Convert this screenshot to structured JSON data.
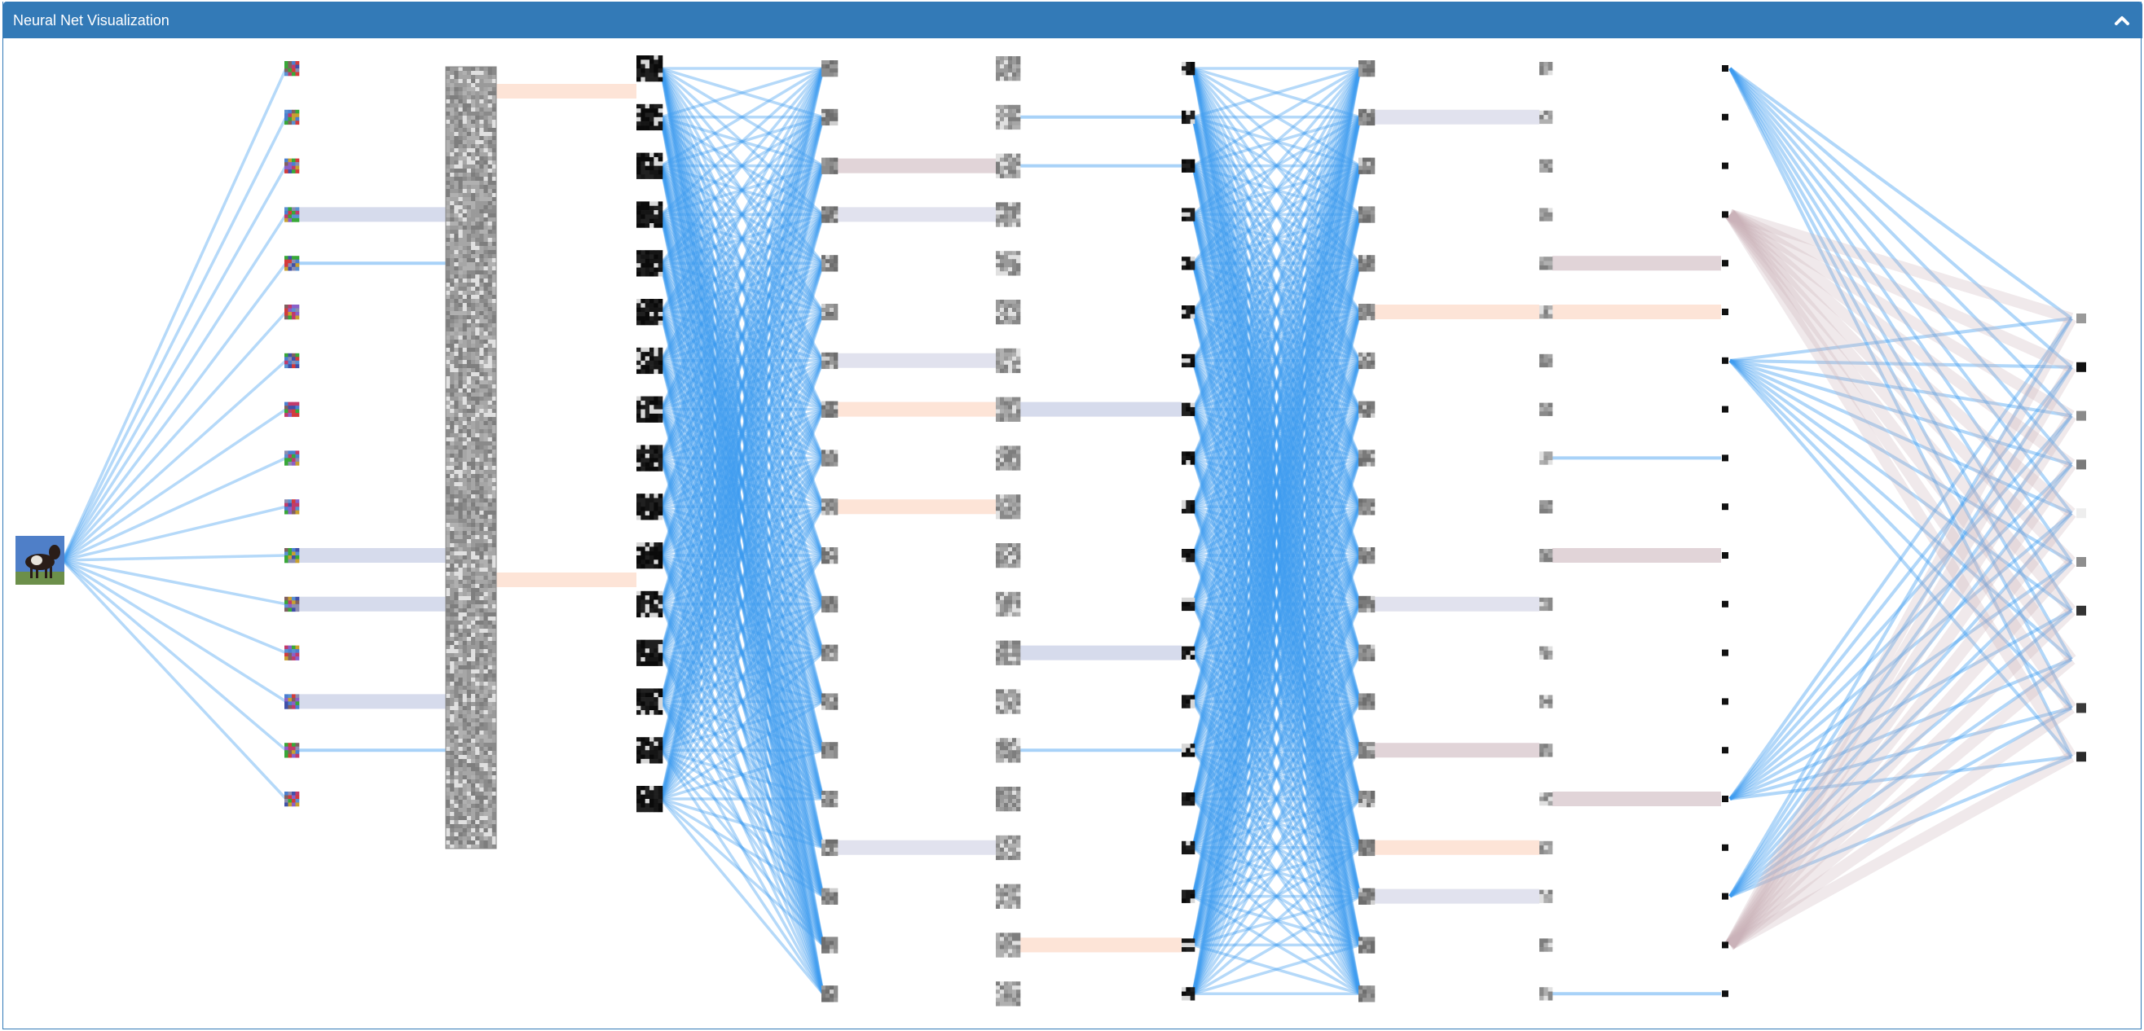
{
  "panel": {
    "title": "Neural Net Visualization",
    "toggle_icon": "chevron-up-icon"
  },
  "colors": {
    "header": "#337ab7",
    "header_text": "#ffffff",
    "edge_blue": "#3d9bf0",
    "edge_slate": "#b4bedd",
    "edge_peach": "#fbcdb6",
    "edge_mauve": "#c9b1b8",
    "edge_lavender": "#c8cae0"
  },
  "network": {
    "layers": [
      {
        "name": "input",
        "count": 1,
        "kind": "color"
      },
      {
        "name": "conv1",
        "count": 16,
        "kind": "color"
      },
      {
        "name": "activation1",
        "count": 16,
        "kind": "gray"
      },
      {
        "name": "pool1",
        "count": 16,
        "kind": "dark"
      },
      {
        "name": "conv2",
        "count": 20,
        "kind": "mid"
      },
      {
        "name": "activation2",
        "count": 20,
        "kind": "gray"
      },
      {
        "name": "pool2",
        "count": 20,
        "kind": "dark"
      },
      {
        "name": "conv3",
        "count": 20,
        "kind": "mid"
      },
      {
        "name": "activation3",
        "count": 20,
        "kind": "gray"
      },
      {
        "name": "pool3",
        "count": 20,
        "kind": "dark"
      },
      {
        "name": "softmax",
        "count": 10,
        "kind": "mid"
      }
    ],
    "one_to_one": [
      {
        "from": 1,
        "to": 2,
        "highlights": [
          [
            3,
            "slate"
          ],
          [
            4,
            "blue"
          ],
          [
            10,
            "slate"
          ],
          [
            11,
            "slate"
          ],
          [
            13,
            "slate"
          ],
          [
            14,
            "blue"
          ]
        ]
      },
      {
        "from": 2,
        "to": 3,
        "highlights": [
          [
            0,
            "peach"
          ],
          [
            10,
            "peach"
          ]
        ]
      },
      {
        "from": 4,
        "to": 5,
        "highlights": [
          [
            2,
            "mauve"
          ],
          [
            3,
            "lavender"
          ],
          [
            6,
            "lavender"
          ],
          [
            7,
            "peach"
          ],
          [
            9,
            "peach"
          ],
          [
            16,
            "lavender"
          ]
        ]
      },
      {
        "from": 5,
        "to": 6,
        "highlights": [
          [
            1,
            "blue"
          ],
          [
            2,
            "blue"
          ],
          [
            7,
            "slate"
          ],
          [
            12,
            "slate"
          ],
          [
            14,
            "blue"
          ],
          [
            18,
            "peach"
          ]
        ]
      },
      {
        "from": 7,
        "to": 8,
        "highlights": [
          [
            1,
            "lavender"
          ],
          [
            5,
            "peach"
          ],
          [
            11,
            "lavender"
          ],
          [
            14,
            "mauve"
          ],
          [
            16,
            "peach"
          ],
          [
            17,
            "lavender"
          ]
        ]
      },
      {
        "from": 8,
        "to": 9,
        "highlights": [
          [
            4,
            "mauve"
          ],
          [
            5,
            "peach"
          ],
          [
            8,
            "blue"
          ],
          [
            10,
            "mauve"
          ],
          [
            15,
            "mauve"
          ],
          [
            19,
            "blue"
          ]
        ]
      }
    ],
    "fully_connected": [
      {
        "from": 0,
        "to": 1,
        "color": "blue"
      },
      {
        "from": 3,
        "to": 4,
        "color": "blue"
      },
      {
        "from": 6,
        "to": 7,
        "color": "blue"
      }
    ],
    "final_connections": {
      "sources": [
        0,
        6,
        15,
        17,
        18,
        3
      ],
      "source_colors": [
        "blue",
        "blue",
        "blue",
        "blue",
        "mauve",
        "mauve"
      ]
    }
  }
}
